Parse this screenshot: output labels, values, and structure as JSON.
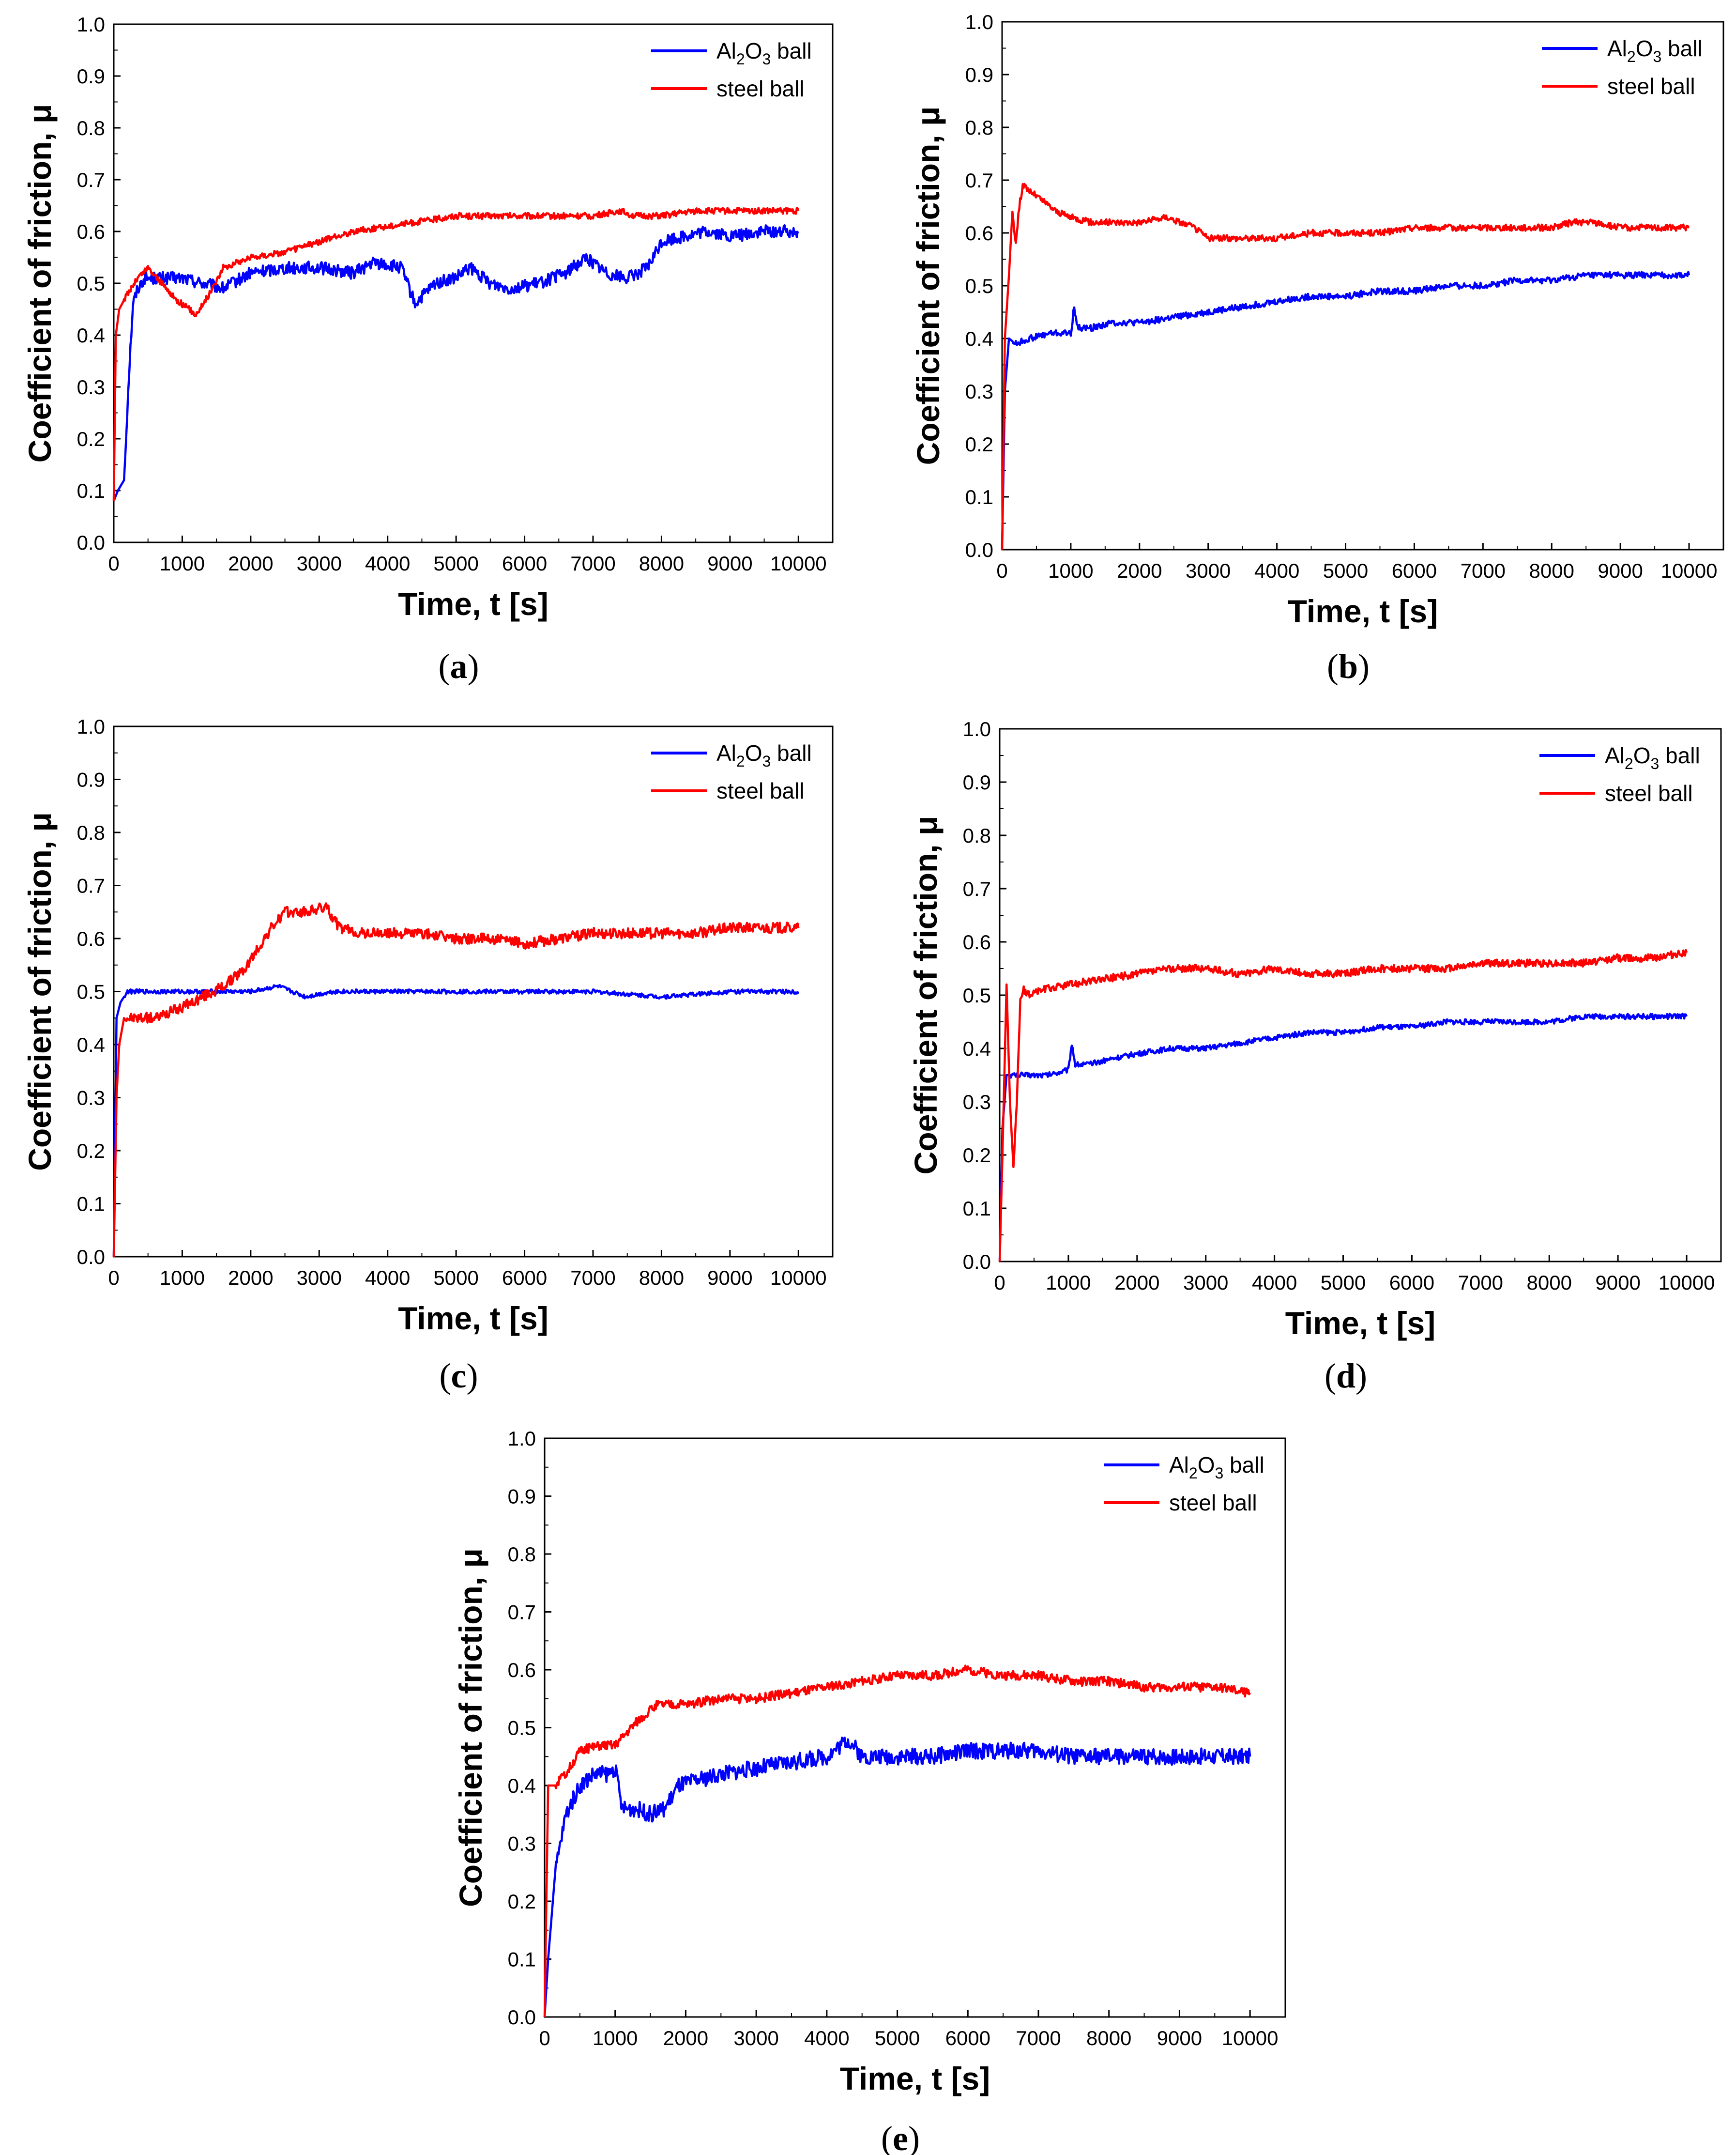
{
  "figure": {
    "panel_labels": [
      {
        "open": "(",
        "letter": "a",
        "close": ")"
      },
      {
        "open": "(",
        "letter": "b",
        "close": ")"
      },
      {
        "open": "(",
        "letter": "c",
        "close": ")"
      },
      {
        "open": "(",
        "letter": "d",
        "close": ")"
      },
      {
        "open": "(",
        "letter": "e",
        "close": ")"
      }
    ]
  },
  "colors": {
    "al2o3": "#0000ff",
    "steel": "#ff0000",
    "axis": "#000000"
  },
  "chart_data": [
    {
      "type": "line",
      "panel": "a",
      "xlabel": "Time, t [s]",
      "ylabel": "Coefficient of friction, μ",
      "xlim": [
        0,
        10500
      ],
      "ylim": [
        0,
        1.0
      ],
      "xticks": [
        0,
        1000,
        2000,
        3000,
        4000,
        5000,
        6000,
        7000,
        8000,
        9000,
        10000
      ],
      "yticks": [
        0.0,
        0.1,
        0.2,
        0.3,
        0.4,
        0.5,
        0.6,
        0.7,
        0.8,
        0.9,
        1.0
      ],
      "ytick_labels": [
        "0.0",
        "0.1",
        "0.2",
        "0.3",
        "0.4",
        "0.5",
        "0.6",
        "0.7",
        "0.8",
        "0.9",
        "1.0"
      ],
      "legend": [
        {
          "prefix": "Al",
          "sub1": "2",
          "mid": "O",
          "sub2": "3",
          "suffix": " ball"
        },
        {
          "text": "steel ball"
        }
      ],
      "series": [
        {
          "name": "Al2O3 ball",
          "color": "#0000ff",
          "x": [
            0,
            60,
            150,
            220,
            280,
            350,
            450,
            600,
            800,
            1000,
            1300,
            1600,
            2000,
            2500,
            3000,
            3500,
            3800,
            4200,
            4400,
            4700,
            5000,
            5200,
            5500,
            5800,
            6200,
            6600,
            6900,
            7200,
            7500,
            7800,
            8000,
            8300,
            8700,
            9000,
            9500,
            10000
          ],
          "y": [
            0.08,
            0.1,
            0.12,
            0.32,
            0.46,
            0.49,
            0.51,
            0.51,
            0.51,
            0.51,
            0.5,
            0.49,
            0.52,
            0.53,
            0.53,
            0.52,
            0.54,
            0.53,
            0.46,
            0.5,
            0.51,
            0.53,
            0.5,
            0.49,
            0.5,
            0.52,
            0.55,
            0.52,
            0.51,
            0.53,
            0.58,
            0.59,
            0.6,
            0.59,
            0.6,
            0.6
          ],
          "noise": 0.012
        },
        {
          "name": "steel ball",
          "color": "#ff0000",
          "x": [
            0,
            30,
            80,
            200,
            350,
            500,
            700,
            900,
            1100,
            1200,
            1400,
            1600,
            1800,
            2000,
            2500,
            3000,
            3500,
            4000,
            4500,
            5000,
            5500,
            6000,
            6500,
            7000,
            7400,
            7600,
            8000,
            8500,
            9000,
            9500,
            10000
          ],
          "y": [
            0.08,
            0.4,
            0.45,
            0.48,
            0.51,
            0.53,
            0.5,
            0.47,
            0.45,
            0.44,
            0.48,
            0.53,
            0.54,
            0.55,
            0.56,
            0.58,
            0.6,
            0.61,
            0.62,
            0.63,
            0.63,
            0.63,
            0.63,
            0.63,
            0.64,
            0.63,
            0.63,
            0.64,
            0.64,
            0.64,
            0.64
          ],
          "noise": 0.006
        }
      ]
    },
    {
      "type": "line",
      "panel": "b",
      "xlabel": "Time, t [s]",
      "ylabel": "Coefficient of friction, μ",
      "xlim": [
        0,
        10500
      ],
      "ylim": [
        0,
        1.0
      ],
      "xticks": [
        0,
        1000,
        2000,
        3000,
        4000,
        5000,
        6000,
        7000,
        8000,
        9000,
        10000
      ],
      "yticks": [
        0.0,
        0.1,
        0.2,
        0.3,
        0.4,
        0.5,
        0.6,
        0.7,
        0.8,
        0.9,
        1.0
      ],
      "ytick_labels": [
        "0.0",
        "0.1",
        "0.2",
        "0.3",
        "0.4",
        "0.5",
        "0.6",
        "0.7",
        "0.8",
        "0.9",
        "1.0"
      ],
      "legend": [
        {
          "prefix": "Al",
          "sub1": "2",
          "mid": "O",
          "sub2": "3",
          "suffix": " ball"
        },
        {
          "text": "steel ball"
        }
      ],
      "series": [
        {
          "name": "Al2O3 ball",
          "color": "#0000ff",
          "x": [
            0,
            40,
            100,
            200,
            400,
            700,
            1000,
            1050,
            1100,
            1300,
            1600,
            2000,
            2500,
            3000,
            3500,
            4000,
            4500,
            5000,
            5500,
            6000,
            6500,
            7000,
            7500,
            8000,
            8500,
            9000,
            9500,
            10000
          ],
          "y": [
            0.0,
            0.3,
            0.4,
            0.39,
            0.4,
            0.41,
            0.41,
            0.46,
            0.42,
            0.42,
            0.43,
            0.43,
            0.44,
            0.45,
            0.46,
            0.47,
            0.48,
            0.48,
            0.49,
            0.49,
            0.5,
            0.5,
            0.51,
            0.51,
            0.52,
            0.52,
            0.52,
            0.52
          ],
          "noise": 0.006
        },
        {
          "name": "steel ball",
          "color": "#ff0000",
          "x": [
            0,
            40,
            100,
            150,
            200,
            250,
            300,
            400,
            600,
            800,
            1000,
            1300,
            1600,
            2000,
            2400,
            2600,
            2800,
            3000,
            3500,
            4000,
            4500,
            5000,
            5500,
            6000,
            6500,
            7000,
            7500,
            8000,
            8300,
            8600,
            9000,
            9500,
            10000
          ],
          "y": [
            0.0,
            0.4,
            0.52,
            0.64,
            0.58,
            0.65,
            0.69,
            0.68,
            0.66,
            0.64,
            0.63,
            0.62,
            0.62,
            0.62,
            0.63,
            0.62,
            0.61,
            0.59,
            0.59,
            0.59,
            0.6,
            0.6,
            0.6,
            0.61,
            0.61,
            0.61,
            0.61,
            0.61,
            0.62,
            0.62,
            0.61,
            0.61,
            0.61
          ],
          "noise": 0.006
        }
      ]
    },
    {
      "type": "line",
      "panel": "c",
      "xlabel": "Time, t [s]",
      "ylabel": "Coefficient of friction, μ",
      "xlim": [
        0,
        10500
      ],
      "ylim": [
        0,
        1.0
      ],
      "xticks": [
        0,
        1000,
        2000,
        3000,
        4000,
        5000,
        6000,
        7000,
        8000,
        9000,
        10000
      ],
      "yticks": [
        0.0,
        0.1,
        0.2,
        0.3,
        0.4,
        0.5,
        0.6,
        0.7,
        0.8,
        0.9,
        1.0
      ],
      "ytick_labels": [
        "0.0",
        "0.1",
        "0.2",
        "0.3",
        "0.4",
        "0.5",
        "0.6",
        "0.7",
        "0.8",
        "0.9",
        "1.0"
      ],
      "legend": [
        {
          "prefix": "Al",
          "sub1": "2",
          "mid": "O",
          "sub2": "3",
          "suffix": " ball"
        },
        {
          "text": "steel ball"
        }
      ],
      "series": [
        {
          "name": "Al2O3 ball",
          "color": "#0000ff",
          "x": [
            0,
            40,
            100,
            200,
            400,
            800,
            1200,
            1600,
            2000,
            2400,
            2800,
            3200,
            3600,
            4000,
            5000,
            6000,
            7000,
            8000,
            9000,
            10000
          ],
          "y": [
            0.0,
            0.45,
            0.48,
            0.5,
            0.5,
            0.5,
            0.5,
            0.5,
            0.5,
            0.51,
            0.49,
            0.5,
            0.5,
            0.5,
            0.5,
            0.5,
            0.5,
            0.49,
            0.5,
            0.5
          ],
          "noise": 0.004
        },
        {
          "name": "steel ball",
          "color": "#ff0000",
          "x": [
            0,
            40,
            80,
            150,
            300,
            600,
            1000,
            1300,
            1600,
            1900,
            2100,
            2300,
            2500,
            2800,
            3100,
            3300,
            3600,
            4000,
            4500,
            5000,
            5500,
            6000,
            6500,
            7000,
            7500,
            8000,
            8500,
            9000,
            9500,
            10000
          ],
          "y": [
            0.0,
            0.3,
            0.4,
            0.45,
            0.45,
            0.45,
            0.47,
            0.49,
            0.51,
            0.54,
            0.58,
            0.62,
            0.65,
            0.65,
            0.66,
            0.62,
            0.61,
            0.61,
            0.61,
            0.6,
            0.6,
            0.59,
            0.6,
            0.61,
            0.61,
            0.61,
            0.61,
            0.62,
            0.62,
            0.62
          ],
          "noise": 0.01
        }
      ]
    },
    {
      "type": "line",
      "panel": "d",
      "xlabel": "Time, t [s]",
      "ylabel": "Coefficient of friction, μ",
      "xlim": [
        0,
        10500
      ],
      "ylim": [
        0,
        1.0
      ],
      "xticks": [
        0,
        1000,
        2000,
        3000,
        4000,
        5000,
        6000,
        7000,
        8000,
        9000,
        10000
      ],
      "yticks": [
        0.0,
        0.1,
        0.2,
        0.3,
        0.4,
        0.5,
        0.6,
        0.7,
        0.8,
        0.9,
        1.0
      ],
      "ytick_labels": [
        "0.0",
        "0.1",
        "0.2",
        "0.3",
        "0.4",
        "0.5",
        "0.6",
        "0.7",
        "0.8",
        "0.9",
        "1.0"
      ],
      "legend": [
        {
          "prefix": "Al",
          "sub1": "2",
          "mid": "O",
          "sub2": "3",
          "suffix": " ball"
        },
        {
          "text": "steel ball"
        }
      ],
      "series": [
        {
          "name": "Al2O3 ball",
          "color": "#0000ff",
          "x": [
            0,
            40,
            100,
            200,
            400,
            700,
            1000,
            1050,
            1100,
            1300,
            1600,
            2000,
            2500,
            3000,
            3500,
            4000,
            4500,
            5000,
            5500,
            6000,
            6500,
            7000,
            7500,
            8000,
            8500,
            9000,
            9500,
            10000
          ],
          "y": [
            0.0,
            0.25,
            0.35,
            0.35,
            0.35,
            0.35,
            0.36,
            0.41,
            0.37,
            0.37,
            0.38,
            0.39,
            0.4,
            0.4,
            0.41,
            0.42,
            0.43,
            0.43,
            0.44,
            0.44,
            0.45,
            0.45,
            0.45,
            0.45,
            0.46,
            0.46,
            0.46,
            0.46
          ],
          "noise": 0.005
        },
        {
          "name": "steel ball",
          "color": "#ff0000",
          "x": [
            0,
            40,
            100,
            150,
            200,
            250,
            300,
            350,
            400,
            600,
            1000,
            1500,
            2000,
            2500,
            3000,
            3500,
            4000,
            4500,
            5000,
            5500,
            6000,
            6500,
            7000,
            7500,
            8000,
            8500,
            9000,
            9500,
            10000
          ],
          "y": [
            0.0,
            0.2,
            0.52,
            0.3,
            0.18,
            0.3,
            0.49,
            0.51,
            0.5,
            0.51,
            0.52,
            0.53,
            0.54,
            0.55,
            0.55,
            0.54,
            0.55,
            0.54,
            0.54,
            0.55,
            0.55,
            0.55,
            0.56,
            0.56,
            0.56,
            0.56,
            0.57,
            0.57,
            0.58
          ],
          "noise": 0.007
        }
      ]
    },
    {
      "type": "line",
      "panel": "e",
      "xlabel": "Time, t [s]",
      "ylabel": "Coefficient of friction, μ",
      "xlim": [
        0,
        10500
      ],
      "ylim": [
        0,
        1.0
      ],
      "xticks": [
        0,
        1000,
        2000,
        3000,
        4000,
        5000,
        6000,
        7000,
        8000,
        9000,
        10000
      ],
      "yticks": [
        0.0,
        0.1,
        0.2,
        0.3,
        0.4,
        0.5,
        0.6,
        0.7,
        0.8,
        0.9,
        1.0
      ],
      "ytick_labels": [
        "0.0",
        "0.1",
        "0.2",
        "0.3",
        "0.4",
        "0.5",
        "0.6",
        "0.7",
        "0.8",
        "0.9",
        "1.0"
      ],
      "legend": [
        {
          "prefix": "Al",
          "sub1": "2",
          "mid": "O",
          "sub2": "3",
          "suffix": " ball"
        },
        {
          "text": "steel ball"
        }
      ],
      "series": [
        {
          "name": "Al2O3 ball",
          "color": "#0000ff",
          "x": [
            0,
            50,
            150,
            300,
            500,
            700,
            900,
            1000,
            1100,
            1300,
            1500,
            1700,
            1900,
            2200,
            2500,
            3000,
            3500,
            4000,
            4300,
            4500,
            5000,
            5500,
            6000,
            6500,
            7000,
            7500,
            8000,
            8500,
            9000,
            9500,
            10000
          ],
          "y": [
            0.0,
            0.1,
            0.25,
            0.35,
            0.4,
            0.42,
            0.42,
            0.43,
            0.36,
            0.36,
            0.35,
            0.36,
            0.4,
            0.41,
            0.42,
            0.43,
            0.44,
            0.45,
            0.48,
            0.45,
            0.45,
            0.45,
            0.46,
            0.46,
            0.46,
            0.45,
            0.45,
            0.45,
            0.45,
            0.45,
            0.45
          ],
          "noise": 0.014
        },
        {
          "name": "steel ball",
          "color": "#ff0000",
          "x": [
            0,
            50,
            150,
            300,
            500,
            800,
            1000,
            1300,
            1600,
            2000,
            2500,
            3000,
            3500,
            4000,
            4500,
            5000,
            5500,
            6000,
            6500,
            7000,
            7500,
            8000,
            8500,
            9000,
            9500,
            10000
          ],
          "y": [
            0.0,
            0.4,
            0.4,
            0.42,
            0.46,
            0.47,
            0.47,
            0.51,
            0.54,
            0.54,
            0.55,
            0.55,
            0.56,
            0.57,
            0.58,
            0.59,
            0.59,
            0.6,
            0.59,
            0.59,
            0.58,
            0.58,
            0.57,
            0.57,
            0.57,
            0.56
          ],
          "noise": 0.008
        }
      ]
    }
  ]
}
